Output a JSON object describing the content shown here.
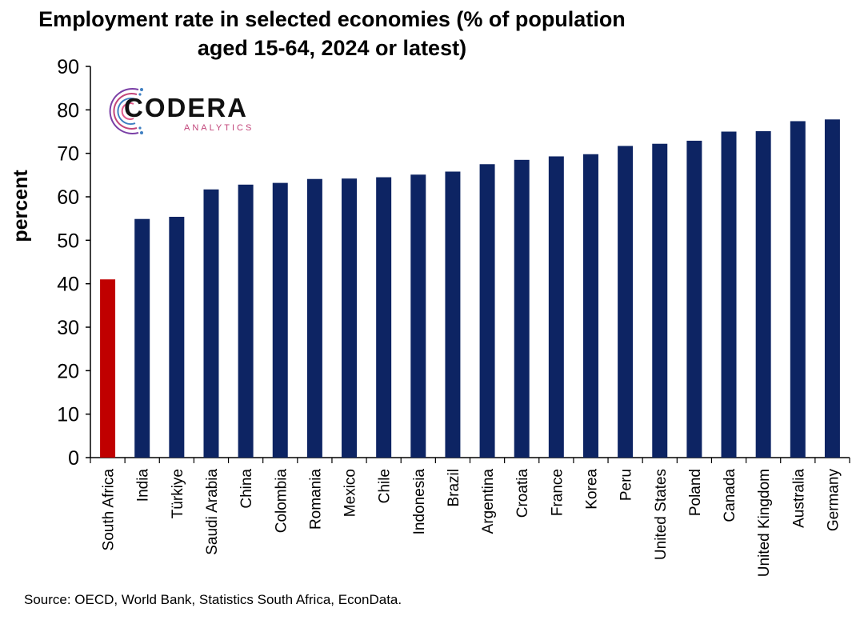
{
  "chart_data": {
    "type": "bar",
    "title_lines": [
      "Employment rate in selected economies (% of population",
      "aged 15-64, 2024 or latest)"
    ],
    "ylabel": "percent",
    "ylim": [
      0,
      90
    ],
    "yticks": [
      0,
      10,
      20,
      30,
      40,
      50,
      60,
      70,
      80,
      90
    ],
    "grid": false,
    "categories": [
      "South Africa",
      "India",
      "Türkiye",
      "Saudi Arabia",
      "China",
      "Colombia",
      "Romania",
      "Mexico",
      "Chile",
      "Indonesia",
      "Brazil",
      "Argentina",
      "Croatia",
      "France",
      "Korea",
      "Peru",
      "United States",
      "Poland",
      "Canada",
      "United Kingdom",
      "Australia",
      "Germany"
    ],
    "values": [
      41.0,
      54.9,
      55.4,
      61.7,
      62.8,
      63.2,
      64.1,
      64.2,
      64.5,
      65.1,
      65.8,
      67.5,
      68.5,
      69.3,
      69.8,
      71.7,
      72.2,
      72.9,
      75.0,
      75.1,
      77.4,
      77.8
    ],
    "colors": {
      "highlight": "#c00000",
      "default": "#0d2463"
    },
    "highlight_category": "South Africa"
  },
  "logo": {
    "word": "CODERA",
    "sub": "ANALYTICS"
  },
  "source": "Source: OECD, World Bank, Statistics South Africa, EconData."
}
